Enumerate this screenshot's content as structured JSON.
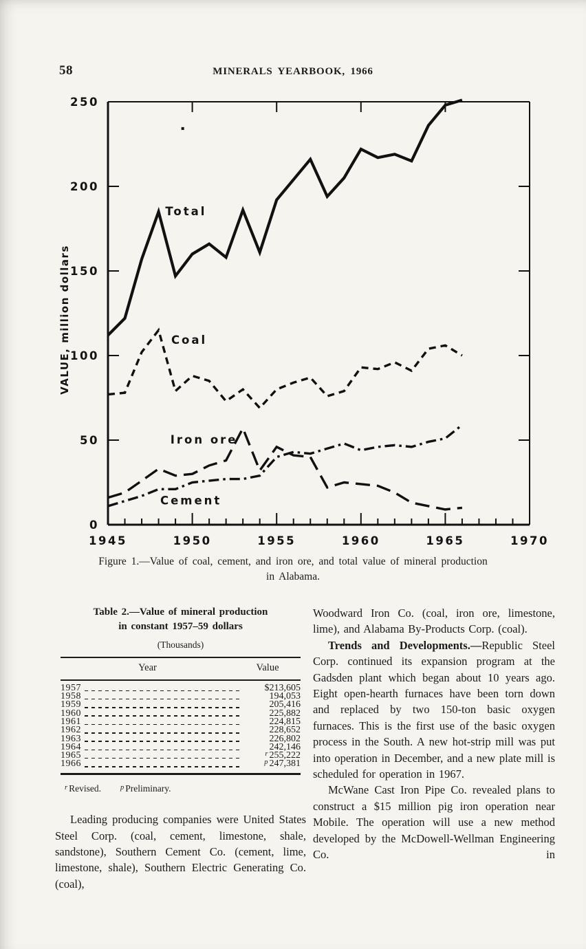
{
  "page": {
    "number": "58",
    "running_title": "MINERALS YEARBOOK, 1966"
  },
  "figure": {
    "caption_line1": "Figure 1.—Value of coal, cement, and iron ore, and total value of mineral production",
    "caption_line2": "in Alabama."
  },
  "chart_data": {
    "type": "line",
    "title": "",
    "xlabel": "",
    "ylabel": "VALUE, million dollars",
    "xlim": [
      1945,
      1970
    ],
    "ylim": [
      0,
      250
    ],
    "x_major_ticks": [
      1945,
      1950,
      1955,
      1960,
      1965,
      1970
    ],
    "y_ticks": [
      0,
      50,
      100,
      150,
      200,
      250
    ],
    "grid": false,
    "legend": "inline-labels",
    "x": [
      1945,
      1946,
      1947,
      1948,
      1949,
      1950,
      1951,
      1952,
      1953,
      1954,
      1955,
      1956,
      1957,
      1958,
      1959,
      1960,
      1961,
      1962,
      1963,
      1964,
      1965,
      1966
    ],
    "series": [
      {
        "name": "Total",
        "dash": "solid",
        "label_at": [
          1948.4,
          183
        ],
        "values": [
          112,
          122,
          157,
          185,
          147,
          160,
          166,
          158,
          186,
          161,
          192,
          204,
          216,
          194,
          205,
          222,
          217,
          219,
          215,
          236,
          248,
          251
        ]
      },
      {
        "name": "Coal",
        "dash": "dash",
        "label_at": [
          1948.75,
          107
        ],
        "values": [
          77,
          78,
          102,
          115,
          79,
          88,
          85,
          73,
          80,
          69,
          80,
          84,
          87,
          76,
          79,
          93,
          92,
          96,
          91,
          104,
          106,
          100
        ]
      },
      {
        "name": "Iron ore",
        "dash": "longdash",
        "label_at": [
          1948.7,
          48
        ],
        "values": [
          16,
          19,
          26,
          33,
          29,
          30,
          35,
          38,
          57,
          32,
          46,
          41,
          40,
          22,
          25,
          24,
          23,
          19,
          13,
          11,
          9,
          10
        ]
      },
      {
        "name": "Cement",
        "dash": "dashdot",
        "label_at": [
          1948.1,
          12
        ],
        "values": [
          11,
          14,
          17,
          21,
          21,
          25,
          26,
          27,
          27,
          29,
          40,
          43,
          42,
          45,
          48,
          44,
          46,
          47,
          46,
          49,
          51,
          59
        ]
      }
    ]
  },
  "table": {
    "title_line1": "Table 2.—Value of mineral production",
    "title_line2": "in constant 1957–59 dollars",
    "subtitle": "(Thousands)",
    "col_year": "Year",
    "col_value": "Value",
    "rows": [
      {
        "year": "1957",
        "sup": "",
        "value": "$213,605"
      },
      {
        "year": "1958",
        "sup": "",
        "value": "194,053"
      },
      {
        "year": "1959",
        "sup": "",
        "value": "205,416"
      },
      {
        "year": "1960",
        "sup": "",
        "value": "225,882"
      },
      {
        "year": "1961",
        "sup": "",
        "value": "224,815"
      },
      {
        "year": "1962",
        "sup": "",
        "value": "228,652"
      },
      {
        "year": "1963",
        "sup": "",
        "value": "226,802"
      },
      {
        "year": "1964",
        "sup": "",
        "value": "242,146"
      },
      {
        "year": "1965",
        "sup": "r",
        "value": "255,222"
      },
      {
        "year": "1966",
        "sup": "p",
        "value": "247,381"
      }
    ],
    "footnote_r_sup": "r",
    "footnote_r": "Revised.",
    "footnote_p_sup": "p",
    "footnote_p": "Preliminary."
  },
  "left_column": {
    "para1": "Leading producing companies were United States Steel Corp. (coal, cement, limestone, shale, sandstone), Southern Cement Co. (cement, lime, limestone, shale), Southern Electric Generating Co. (coal),"
  },
  "right_column": {
    "para1": "Woodward Iron Co. (coal, iron ore, limestone, lime), and Alabama By-Products Corp. (coal).",
    "para2_bold": "Trends and Developments.—",
    "para2_rest": "Republic Steel Corp. continued its expansion program at the Gadsden plant which began about 10 years ago. Eight open-hearth furnaces have been torn down and replaced by two 150-ton basic oxygen furnaces. This is the first use of the basic oxygen process in the South. A new hot-strip mill was put into operation in December, and a new plate mill is scheduled for operation in 1967.",
    "para3": "McWane Cast Iron Pipe Co. revealed plans to construct a $15 million pig iron operation near Mobile. The operation will use a new method developed by the McDowell-Wellman Engineering Co. in"
  },
  "colors": {
    "paper": "#f6f4ef",
    "ink": "#1b1b1b",
    "line": "#111111"
  }
}
